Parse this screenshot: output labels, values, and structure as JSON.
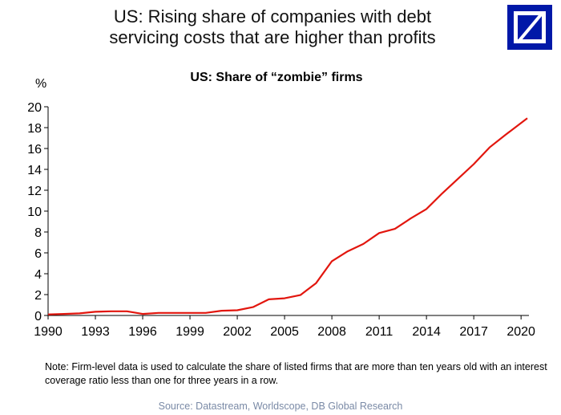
{
  "header": {
    "title_line1": "US: Rising share of companies with debt",
    "title_line2": "servicing costs that are higher than profits"
  },
  "logo": {
    "name": "deutsche-bank-logo",
    "color": "#0018a8"
  },
  "chart_data": {
    "type": "line",
    "title": "US: Share of “zombie” firms",
    "ylabel": "%",
    "xlabel": "",
    "xlim": [
      1990,
      2020.5
    ],
    "ylim": [
      0,
      20
    ],
    "x_ticks": [
      1990,
      1993,
      1996,
      1999,
      2002,
      2005,
      2008,
      2011,
      2014,
      2017,
      2020
    ],
    "y_ticks": [
      0,
      2,
      4,
      6,
      8,
      10,
      12,
      14,
      16,
      18,
      20
    ],
    "grid": false,
    "line_color": "#e2160e",
    "series": [
      {
        "x": [
          1990,
          1991,
          1992,
          1993,
          1994,
          1995,
          1996,
          1997,
          1998,
          1999,
          2000,
          2001,
          2002,
          2003,
          2004,
          2005,
          2006,
          2007,
          2008,
          2009,
          2010,
          2011,
          2012,
          2013,
          2014,
          2015,
          2016,
          2017,
          2018,
          2019,
          2020.4
        ],
        "values": [
          0.1,
          0.15,
          0.2,
          0.35,
          0.4,
          0.4,
          0.15,
          0.25,
          0.25,
          0.25,
          0.25,
          0.45,
          0.5,
          0.8,
          1.55,
          1.65,
          1.95,
          3.1,
          5.2,
          6.15,
          6.85,
          7.9,
          8.3,
          9.3,
          10.2,
          11.7,
          13.1,
          14.5,
          16.1,
          17.3,
          18.9
        ]
      }
    ]
  },
  "footer": {
    "note": "Note: Firm-level data is used to calculate the share of listed firms that are more than ten years old with an interest coverage ratio less than one for three years in a row.",
    "source": "Source: Datastream, Worldscope, DB Global Research"
  }
}
